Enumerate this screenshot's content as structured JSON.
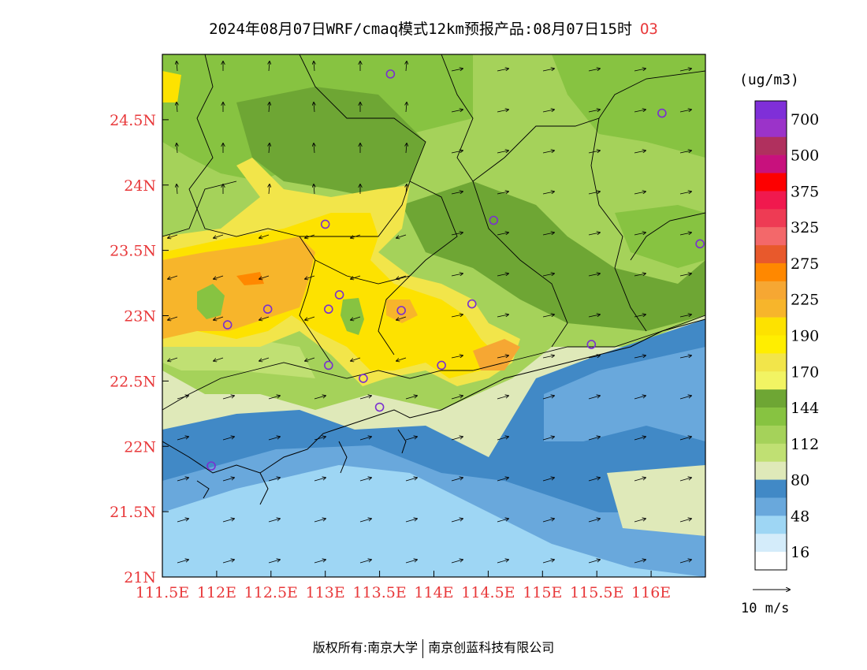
{
  "header": {
    "title": "2024年08月07日WRF/cmaq模式12km预报产品:08月07日15时",
    "species": "O3"
  },
  "map": {
    "lon_range": [
      111.5,
      116.5
    ],
    "lat_range": [
      21.0,
      25.0
    ],
    "lat_ticks": [
      "24.5N",
      "24N",
      "23.5N",
      "23N",
      "22.5N",
      "22N",
      "21.5N",
      "21N"
    ],
    "lon_ticks": [
      "111.5E",
      "112E",
      "112.5E",
      "113E",
      "113.5E",
      "114E",
      "114.5E",
      "115E",
      "115.5E",
      "116E"
    ],
    "tick_color": "#e8393b"
  },
  "legend": {
    "unit": "(ug/m3)",
    "colors": [
      "#7f2fd8",
      "#9b33c9",
      "#b0305e",
      "#c8117d",
      "#fd0000",
      "#f0194e",
      "#ee3b54",
      "#f3686a",
      "#e8592c",
      "#ff8800",
      "#f6a733",
      "#f7b52b",
      "#fde200",
      "#ffee00",
      "#f2e54a",
      "#f2f463",
      "#6ea634",
      "#87c341",
      "#a5d25a",
      "#c0e073",
      "#dfe9b9",
      "#4189c6",
      "#69a8dc",
      "#9ed6f4",
      "#d4ecfa",
      "#ffffff"
    ],
    "labels": [
      "700",
      "500",
      "375",
      "325",
      "275",
      "225",
      "190",
      "170",
      "144",
      "112",
      "80",
      "48",
      "16"
    ]
  },
  "wind_reference": {
    "label": "10 m/s"
  },
  "stations": [
    [
      113.6,
      24.85
    ],
    [
      116.1,
      24.55
    ],
    [
      113.0,
      23.7
    ],
    [
      114.55,
      23.73
    ],
    [
      116.45,
      23.55
    ],
    [
      113.13,
      23.16
    ],
    [
      113.7,
      23.04
    ],
    [
      114.35,
      23.09
    ],
    [
      113.03,
      23.05
    ],
    [
      112.47,
      23.05
    ],
    [
      112.1,
      22.93
    ],
    [
      115.45,
      22.78
    ],
    [
      114.07,
      22.62
    ],
    [
      113.03,
      22.62
    ],
    [
      113.35,
      22.52
    ],
    [
      113.5,
      22.3
    ],
    [
      111.95,
      21.85
    ]
  ],
  "footer": {
    "copyright": "版权所有:南京大学",
    "company": "南京创蓝科技有限公司"
  }
}
